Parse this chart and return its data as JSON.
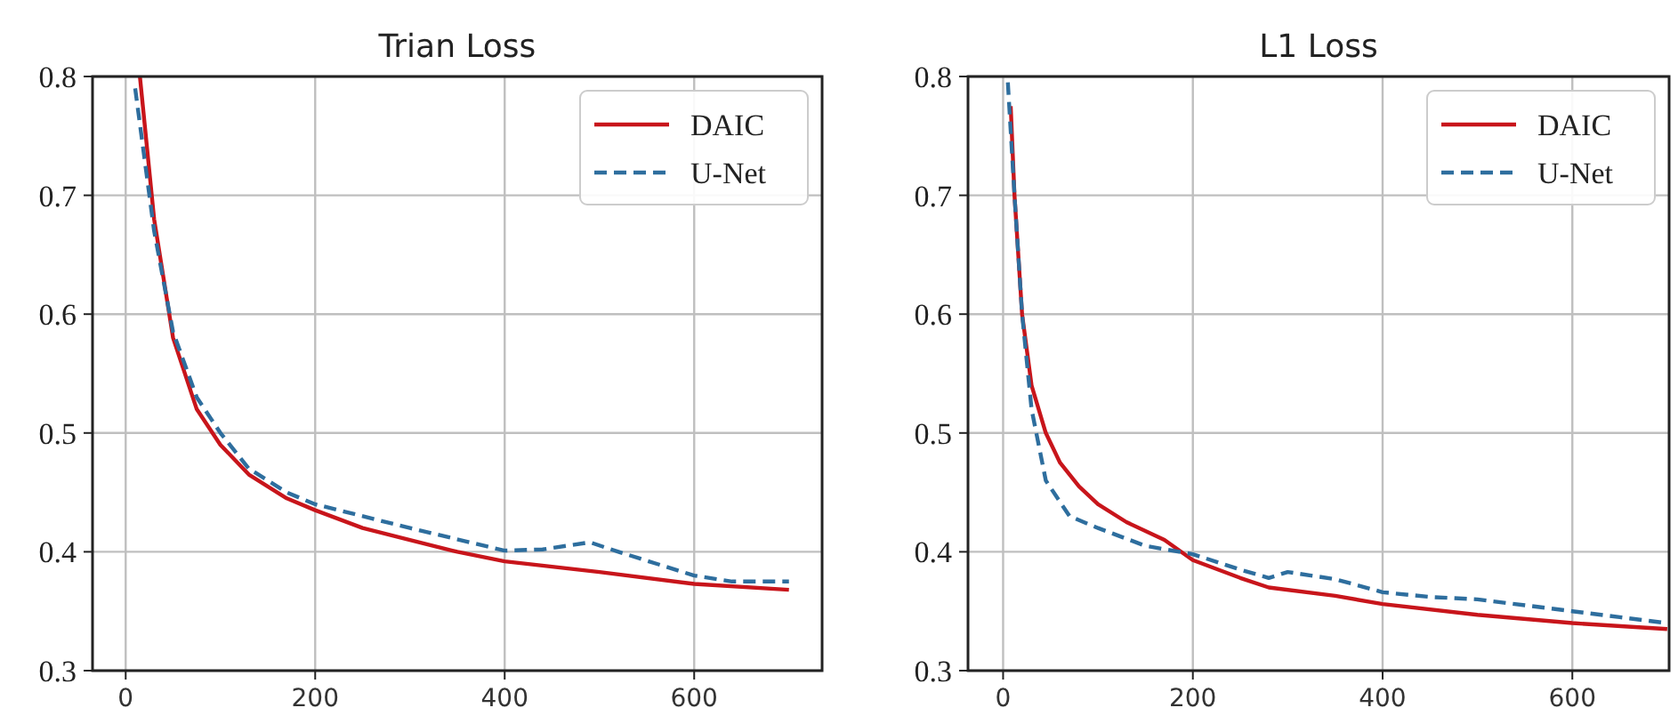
{
  "chart_data": [
    {
      "type": "line",
      "title": "Trian Loss",
      "xlim": [
        -35,
        735
      ],
      "xticks": [
        0,
        200,
        400,
        600
      ],
      "ylim": [
        0.3,
        0.8
      ],
      "yticks": [
        0.3,
        0.4,
        0.5,
        0.6,
        0.7,
        0.8
      ],
      "grid": true,
      "legend": "top right",
      "series": [
        {
          "name": "DAIC",
          "color": "#c8151b",
          "line_style": "solid",
          "x": [
            15,
            30,
            50,
            75,
            100,
            130,
            170,
            200,
            250,
            300,
            350,
            400,
            500,
            600,
            700
          ],
          "values": [
            0.8,
            0.68,
            0.58,
            0.52,
            0.49,
            0.465,
            0.445,
            0.435,
            0.42,
            0.41,
            0.4,
            0.392,
            0.383,
            0.373,
            0.368
          ]
        },
        {
          "name": "U-Net",
          "color": "#2e6e9e",
          "line_style": "dashed",
          "x": [
            10,
            30,
            50,
            75,
            100,
            130,
            170,
            200,
            300,
            400,
            440,
            490,
            520,
            560,
            600,
            640,
            700
          ],
          "values": [
            0.79,
            0.67,
            0.585,
            0.53,
            0.5,
            0.47,
            0.45,
            0.44,
            0.42,
            0.401,
            0.402,
            0.408,
            0.4,
            0.39,
            0.38,
            0.375,
            0.375
          ]
        }
      ]
    },
    {
      "type": "line",
      "title": "L1 Loss",
      "xlim": [
        -37,
        702
      ],
      "xticks": [
        0,
        200,
        400,
        600
      ],
      "ylim": [
        0.3,
        0.8
      ],
      "yticks": [
        0.3,
        0.4,
        0.5,
        0.6,
        0.7,
        0.8
      ],
      "grid": true,
      "legend": "top right",
      "series": [
        {
          "name": "DAIC",
          "color": "#c8151b",
          "line_style": "solid",
          "x": [
            8,
            12,
            20,
            30,
            45,
            60,
            80,
            100,
            130,
            170,
            200,
            250,
            280,
            350,
            400,
            500,
            600,
            700
          ],
          "values": [
            0.775,
            0.7,
            0.6,
            0.54,
            0.5,
            0.475,
            0.455,
            0.44,
            0.425,
            0.41,
            0.393,
            0.378,
            0.37,
            0.363,
            0.356,
            0.347,
            0.34,
            0.335
          ]
        },
        {
          "name": "U-Net",
          "color": "#2e6e9e",
          "line_style": "dashed",
          "x": [
            5,
            12,
            20,
            30,
            45,
            70,
            100,
            150,
            200,
            250,
            280,
            300,
            350,
            400,
            450,
            500,
            550,
            600,
            650,
            700
          ],
          "values": [
            0.795,
            0.7,
            0.6,
            0.52,
            0.46,
            0.43,
            0.42,
            0.405,
            0.398,
            0.385,
            0.378,
            0.383,
            0.377,
            0.366,
            0.362,
            0.36,
            0.355,
            0.35,
            0.345,
            0.34
          ]
        }
      ]
    }
  ]
}
